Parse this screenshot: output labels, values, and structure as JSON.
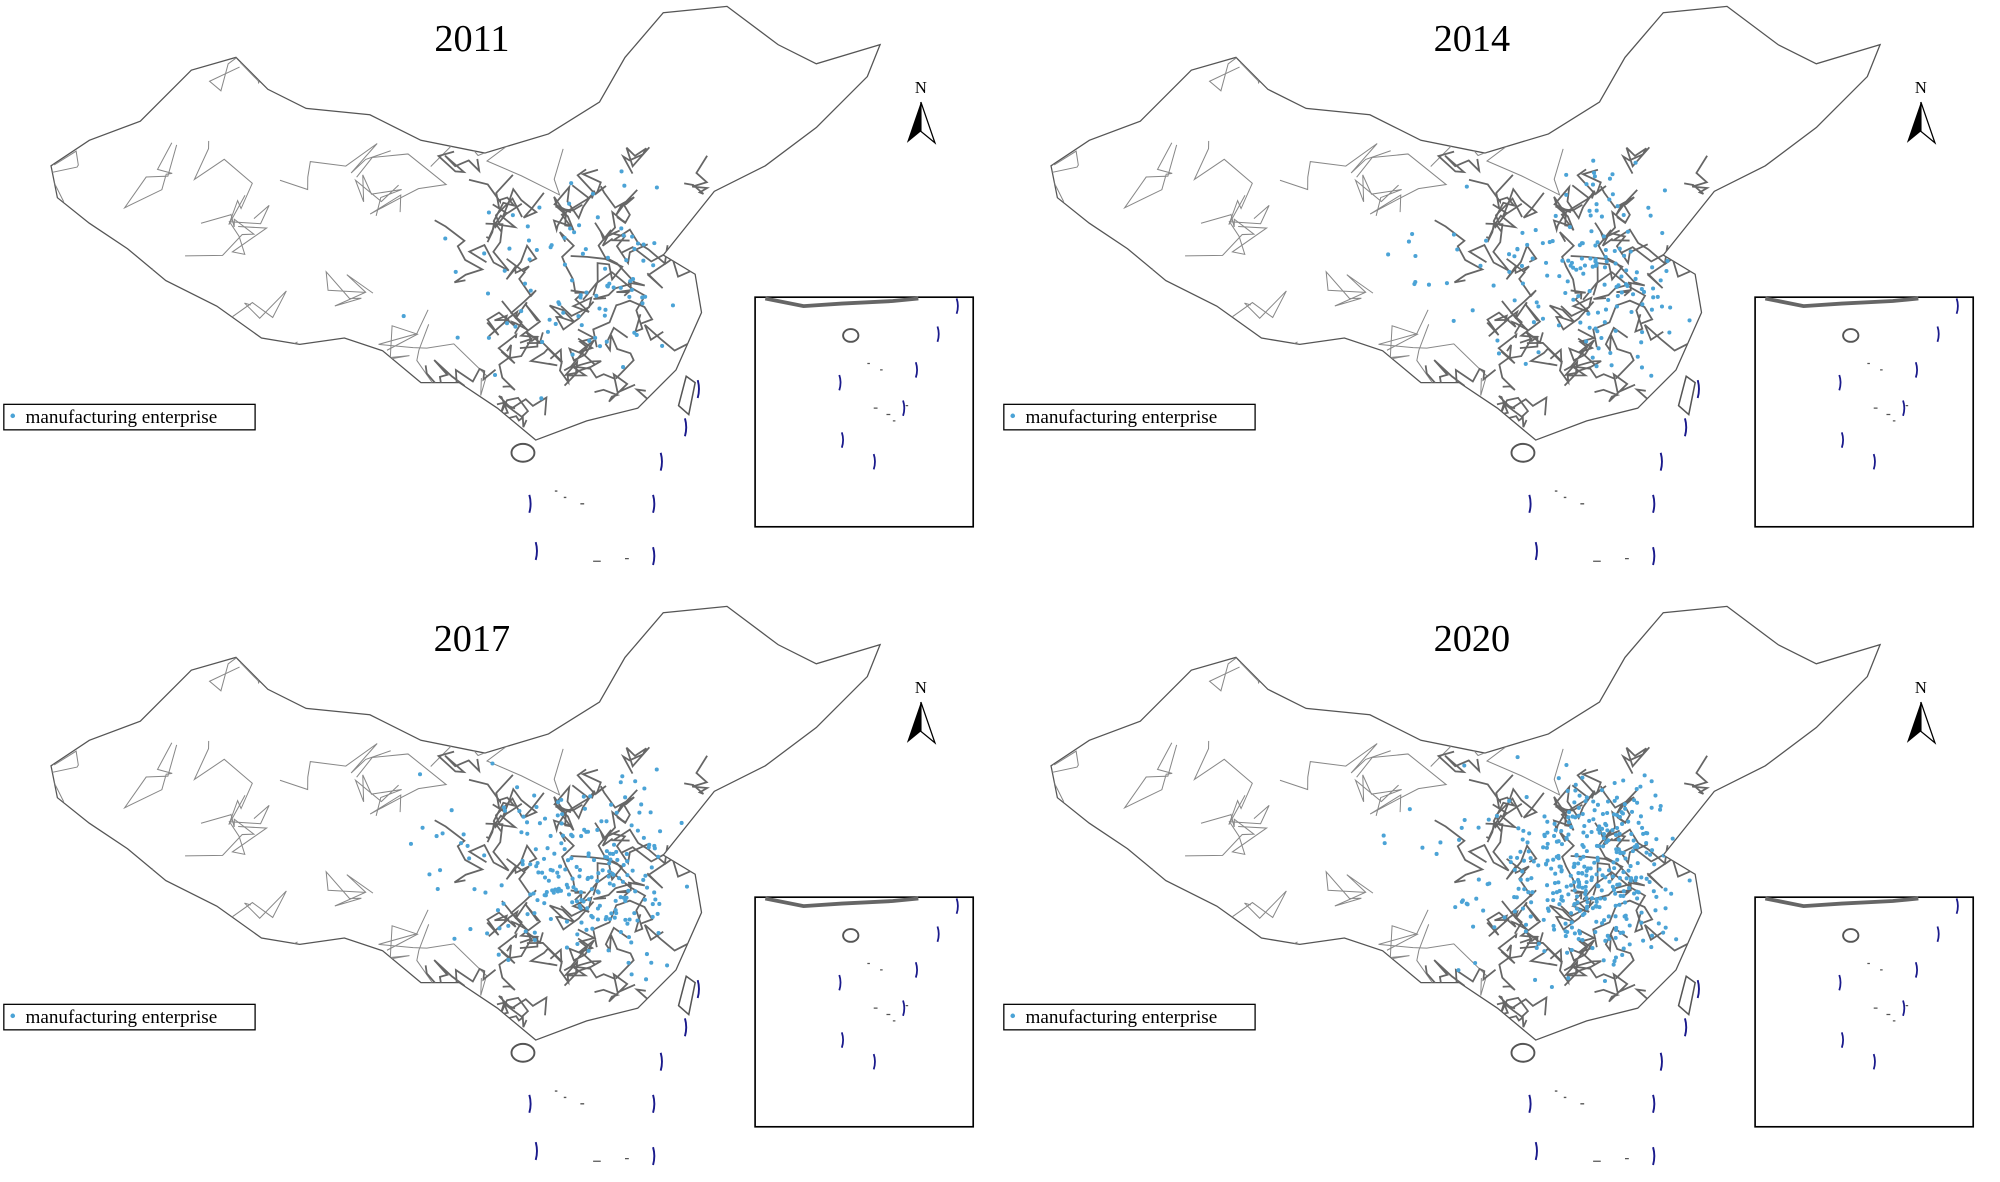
{
  "panels": [
    {
      "title": "2011",
      "north": "N",
      "legend": "manufacturing enterprise"
    },
    {
      "title": "2014",
      "north": "N",
      "legend": "manufacturing enterprise"
    },
    {
      "title": "2017",
      "north": "N",
      "legend": "manufacturing enterprise"
    },
    {
      "title": "2020",
      "north": "N",
      "legend": "manufacturing enterprise"
    }
  ]
}
